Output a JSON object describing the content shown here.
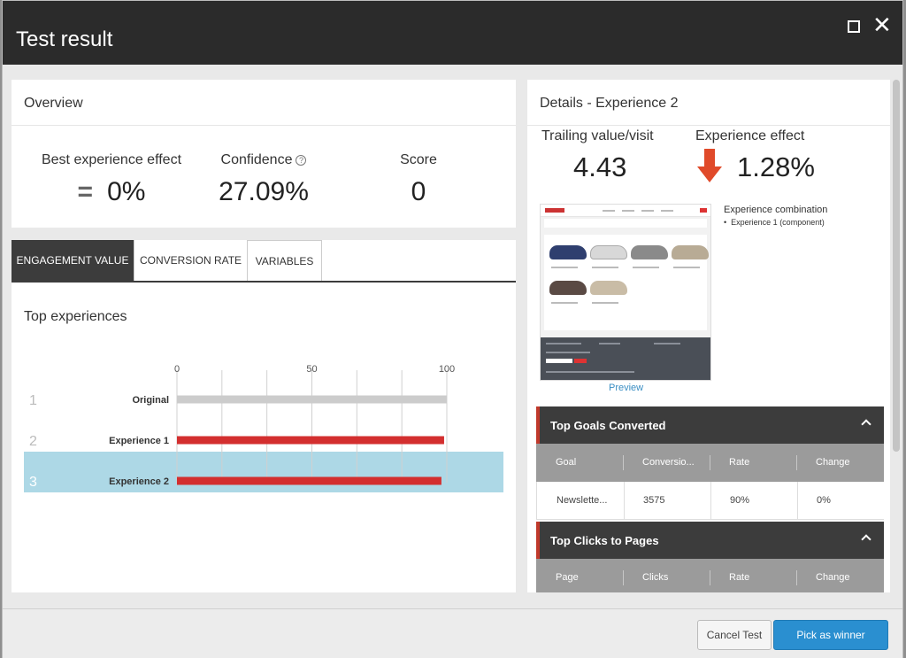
{
  "dialog": {
    "title": "Test result",
    "maximize_icon": "maximize-icon",
    "close_icon": "close-icon",
    "close_glyph": "✕"
  },
  "overview": {
    "header": "Overview",
    "best_effect_label": "Best experience effect",
    "best_effect_prefix": "=",
    "best_effect_value": "0%",
    "confidence_label": "Confidence",
    "confidence_help": "?",
    "confidence_value": "27.09%",
    "score_label": "Score",
    "score_value": "0"
  },
  "tabs": [
    {
      "label": "ENGAGEMENT VALUE",
      "active": true
    },
    {
      "label": "CONVERSION RATE",
      "active": false
    },
    {
      "label": "VARIABLES",
      "active": false
    }
  ],
  "top_experiences": {
    "title": "Top experiences",
    "selected_index": 2,
    "highlight_color": "#add8e6"
  },
  "chart_data": {
    "type": "bar",
    "orientation": "horizontal",
    "xlim": [
      0,
      100
    ],
    "ticks": [
      "0",
      "50",
      "100"
    ],
    "rows": [
      {
        "rank": "1",
        "name": "Original",
        "value": 100,
        "color": "#cccccc"
      },
      {
        "rank": "2",
        "name": "Experience 1",
        "value": 99,
        "color": "#d32f2f"
      },
      {
        "rank": "3",
        "name": "Experience 2",
        "value": 98,
        "color": "#d32f2f"
      }
    ]
  },
  "details": {
    "header": "Details - Experience 2",
    "trailing_label": "Trailing value/visit",
    "trailing_value": "4.43",
    "effect_label": "Experience effect",
    "effect_value": "1.28%",
    "effect_icon": "arrow-down-icon",
    "effect_color": "#e04a2a",
    "preview_link": "Preview",
    "combination_title": "Experience combination",
    "combination_item": "Experience 1 (component)"
  },
  "goals": {
    "title": "Top Goals Converted",
    "columns": [
      "Goal",
      "Conversio...",
      "Rate",
      "Change"
    ],
    "rows": [
      [
        "Newslette...",
        "3575",
        "90%",
        "0%"
      ]
    ]
  },
  "clicks": {
    "title": "Top Clicks to Pages",
    "columns": [
      "Page",
      "Clicks",
      "Rate",
      "Change"
    ]
  },
  "footer": {
    "cancel_label": "Cancel Test",
    "winner_label": "Pick as winner"
  }
}
